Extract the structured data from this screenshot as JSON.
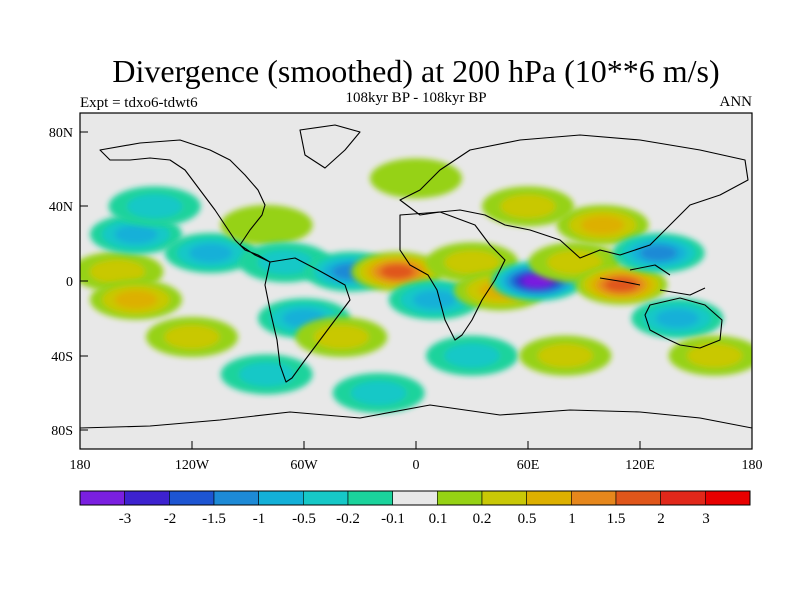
{
  "chart_data": {
    "type": "heatmap",
    "title": "Divergence (smoothed) at 200 hPa (10**6 m/s)",
    "subtitle": "108kyr BP - 108kyr BP",
    "left_label": "Expt = tdxo6-tdwt6",
    "right_label": "ANN",
    "x_ticks": [
      "180",
      "120W",
      "60W",
      "0",
      "60E",
      "120E",
      "180"
    ],
    "x_tick_values": [
      -180,
      -120,
      -60,
      0,
      60,
      120,
      180
    ],
    "y_ticks": [
      "80N",
      "40N",
      "0",
      "40S",
      "80S"
    ],
    "y_tick_values": [
      80,
      40,
      0,
      -40,
      -80
    ],
    "xlim": [
      -180,
      180
    ],
    "ylim": [
      -90,
      90
    ],
    "colorbar": {
      "labels": [
        "-3",
        "-2",
        "-1.5",
        "-1",
        "-0.5",
        "-0.2",
        "-0.1",
        "0.1",
        "0.2",
        "0.5",
        "1",
        "1.5",
        "2",
        "3"
      ],
      "levels": [
        -3,
        -2,
        -1.5,
        -1,
        -0.5,
        -0.2,
        -0.1,
        0.1,
        0.2,
        0.5,
        1,
        1.5,
        2,
        3
      ],
      "colors": [
        "#7a1fe0",
        "#3d22cf",
        "#1d55d2",
        "#1d8ad6",
        "#13b0d8",
        "#16c8c7",
        "#1bd39c",
        "#e8e8e8",
        "#96d214",
        "#c9c806",
        "#ddb000",
        "#e6871c",
        "#e0561a",
        "#e1281a",
        "#e80000"
      ]
    },
    "blobs": [
      {
        "lon": -160,
        "lat": 5,
        "value": 0.5
      },
      {
        "lon": -150,
        "lat": 25,
        "value": -0.5
      },
      {
        "lon": -150,
        "lat": -10,
        "value": 1
      },
      {
        "lon": -120,
        "lat": -30,
        "value": 0.5
      },
      {
        "lon": -140,
        "lat": 40,
        "value": -0.2
      },
      {
        "lon": -110,
        "lat": 15,
        "value": -0.5
      },
      {
        "lon": -80,
        "lat": 30,
        "value": 0.2
      },
      {
        "lon": -70,
        "lat": 10,
        "value": -0.2
      },
      {
        "lon": -60,
        "lat": -20,
        "value": -0.5
      },
      {
        "lon": -40,
        "lat": -30,
        "value": 0.5
      },
      {
        "lon": -35,
        "lat": 5,
        "value": -1
      },
      {
        "lon": -10,
        "lat": 5,
        "value": 2
      },
      {
        "lon": 10,
        "lat": -10,
        "value": -0.5
      },
      {
        "lon": 30,
        "lat": 10,
        "value": 0.5
      },
      {
        "lon": 45,
        "lat": -5,
        "value": 1
      },
      {
        "lon": 65,
        "lat": 0,
        "value": -3
      },
      {
        "lon": 85,
        "lat": 10,
        "value": 0.5
      },
      {
        "lon": 100,
        "lat": 30,
        "value": 1
      },
      {
        "lon": 110,
        "lat": -2,
        "value": 2
      },
      {
        "lon": 130,
        "lat": 15,
        "value": -1
      },
      {
        "lon": 140,
        "lat": -20,
        "value": -0.5
      },
      {
        "lon": 160,
        "lat": -40,
        "value": 0.5
      },
      {
        "lon": 30,
        "lat": -40,
        "value": -0.2
      },
      {
        "lon": 80,
        "lat": -40,
        "value": 0.5
      },
      {
        "lon": 0,
        "lat": 55,
        "value": 0.2
      },
      {
        "lon": -80,
        "lat": -50,
        "value": -0.2
      },
      {
        "lon": 60,
        "lat": 40,
        "value": 0.5
      },
      {
        "lon": -20,
        "lat": -60,
        "value": -0.2
      }
    ]
  }
}
